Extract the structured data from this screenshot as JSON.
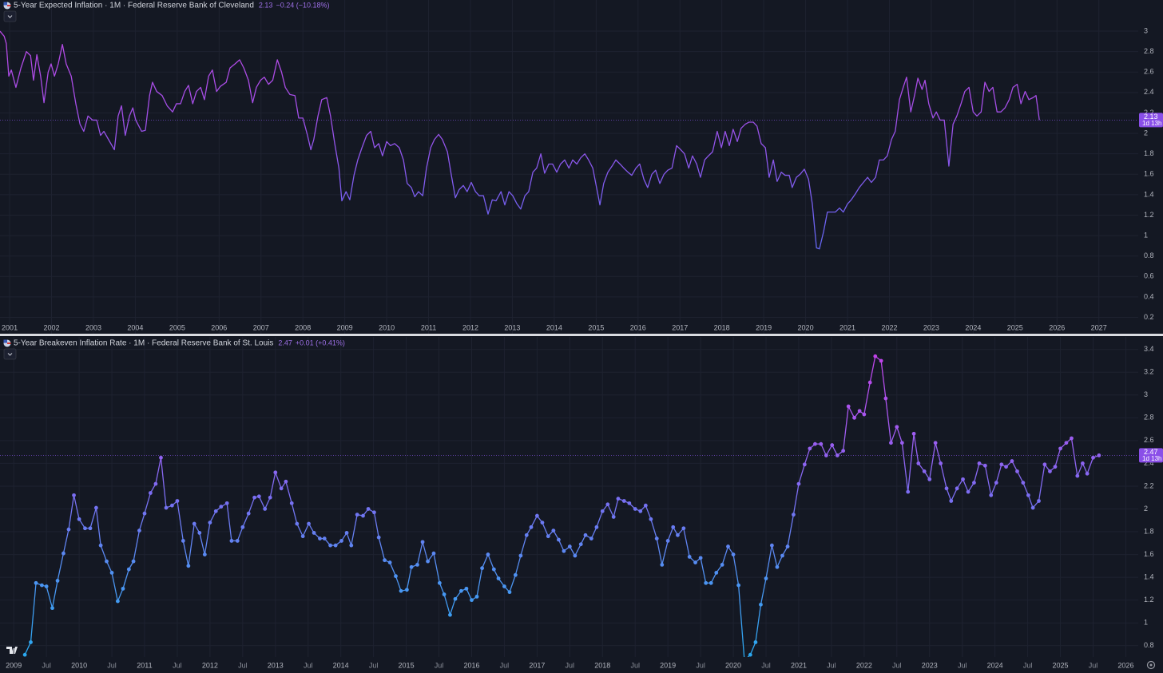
{
  "chart_data": [
    {
      "type": "line",
      "title": "5-Year Expected Inflation · 1M · Federal Reserve Bank of Cleveland",
      "last": "2.13",
      "change": "−0.24 (−10.18%)",
      "countdown": "1d 13h",
      "x": [
        2000.77,
        2000.87,
        2000.92,
        2000.98,
        2001.04,
        2001.15,
        2001.27,
        2001.4,
        2001.5,
        2001.57,
        2001.65,
        2001.74,
        2001.82,
        2001.92,
        2001.99,
        2002.07,
        2002.16,
        2002.26,
        2002.35,
        2002.47,
        2002.58,
        2002.68,
        2002.77,
        2002.87,
        2002.98,
        2003.08,
        2003.17,
        2003.25,
        2003.36,
        2003.5,
        2003.59,
        2003.67,
        2003.76,
        2003.86,
        2003.94,
        2004.01,
        2004.15,
        2004.24,
        2004.34,
        2004.41,
        2004.51,
        2004.64,
        2004.76,
        2004.89,
        2004.98,
        2005.08,
        2005.18,
        2005.27,
        2005.37,
        2005.46,
        2005.56,
        2005.65,
        2005.75,
        2005.84,
        2005.94,
        2006.03,
        2006.17,
        2006.26,
        2006.38,
        2006.49,
        2006.59,
        2006.7,
        2006.8,
        2006.89,
        2006.99,
        2007.08,
        2007.18,
        2007.28,
        2007.39,
        2007.49,
        2007.58,
        2007.69,
        2007.81,
        2007.9,
        2008.0,
        2008.11,
        2008.19,
        2008.26,
        2008.36,
        2008.45,
        2008.57,
        2008.66,
        2008.76,
        2008.86,
        2008.93,
        2009.03,
        2009.12,
        2009.22,
        2009.31,
        2009.41,
        2009.52,
        2009.62,
        2009.71,
        2009.81,
        2009.9,
        2010.0,
        2010.09,
        2010.19,
        2010.3,
        2010.4,
        2010.49,
        2010.59,
        2010.67,
        2010.76,
        2010.86,
        2010.95,
        2011.05,
        2011.14,
        2011.24,
        2011.33,
        2011.45,
        2011.54,
        2011.64,
        2011.73,
        2011.83,
        2011.92,
        2012.02,
        2012.12,
        2012.21,
        2012.31,
        2012.42,
        2012.52,
        2012.61,
        2012.73,
        2012.82,
        2012.92,
        2013.01,
        2013.11,
        2013.2,
        2013.3,
        2013.39,
        2013.49,
        2013.58,
        2013.68,
        2013.77,
        2013.87,
        2013.96,
        2014.06,
        2014.15,
        2014.25,
        2014.35,
        2014.44,
        2014.54,
        2014.63,
        2014.73,
        2014.82,
        2014.92,
        2015.01,
        2015.09,
        2015.18,
        2015.28,
        2015.38,
        2015.47,
        2015.57,
        2015.66,
        2015.76,
        2015.85,
        2015.95,
        2016.04,
        2016.14,
        2016.23,
        2016.33,
        2016.42,
        2016.52,
        2016.62,
        2016.71,
        2016.81,
        2016.92,
        2017.02,
        2017.11,
        2017.21,
        2017.3,
        2017.4,
        2017.49,
        2017.59,
        2017.68,
        2017.78,
        2017.89,
        2017.99,
        2018.08,
        2018.18,
        2018.27,
        2018.37,
        2018.46,
        2018.56,
        2018.65,
        2018.75,
        2018.84,
        2018.94,
        2019.04,
        2019.13,
        2019.23,
        2019.32,
        2019.42,
        2019.51,
        2019.61,
        2019.68,
        2019.78,
        2019.87,
        2019.97,
        2020.07,
        2020.16,
        2020.26,
        2020.33,
        2020.43,
        2020.52,
        2020.62,
        2020.71,
        2020.81,
        2020.9,
        2021.0,
        2021.09,
        2021.19,
        2021.28,
        2021.38,
        2021.48,
        2021.57,
        2021.67,
        2021.76,
        2021.86,
        2021.95,
        2022.05,
        2022.14,
        2022.24,
        2022.33,
        2022.41,
        2022.51,
        2022.6,
        2022.68,
        2022.78,
        2022.85,
        2022.94,
        2023.04,
        2023.12,
        2023.21,
        2023.31,
        2023.42,
        2023.52,
        2023.61,
        2023.71,
        2023.8,
        2023.9,
        2024.0,
        2024.09,
        2024.19,
        2024.28,
        2024.38,
        2024.47,
        2024.57,
        2024.66,
        2024.76,
        2024.86,
        2024.95,
        2025.05,
        2025.14,
        2025.24,
        2025.33,
        2025.43,
        2025.5,
        2025.58
      ],
      "values": [
        3.0,
        2.95,
        2.88,
        2.56,
        2.62,
        2.45,
        2.64,
        2.8,
        2.76,
        2.52,
        2.77,
        2.56,
        2.3,
        2.6,
        2.68,
        2.56,
        2.68,
        2.87,
        2.68,
        2.56,
        2.29,
        2.09,
        2.02,
        2.17,
        2.13,
        2.13,
        1.98,
        2.02,
        1.94,
        1.84,
        2.17,
        2.27,
        1.98,
        2.17,
        2.25,
        2.13,
        2.02,
        2.03,
        2.37,
        2.5,
        2.41,
        2.37,
        2.27,
        2.21,
        2.29,
        2.29,
        2.41,
        2.47,
        2.29,
        2.41,
        2.45,
        2.33,
        2.56,
        2.62,
        2.41,
        2.46,
        2.5,
        2.64,
        2.68,
        2.72,
        2.64,
        2.52,
        2.3,
        2.45,
        2.52,
        2.55,
        2.48,
        2.52,
        2.72,
        2.6,
        2.45,
        2.38,
        2.37,
        2.15,
        2.15,
        1.98,
        1.84,
        1.94,
        2.17,
        2.33,
        2.35,
        2.17,
        1.9,
        1.66,
        1.34,
        1.43,
        1.35,
        1.59,
        1.74,
        1.86,
        1.98,
        2.02,
        1.86,
        1.9,
        1.78,
        1.92,
        1.88,
        1.9,
        1.86,
        1.74,
        1.51,
        1.47,
        1.38,
        1.43,
        1.39,
        1.66,
        1.86,
        1.94,
        1.99,
        1.94,
        1.82,
        1.6,
        1.37,
        1.45,
        1.49,
        1.43,
        1.52,
        1.43,
        1.39,
        1.39,
        1.21,
        1.35,
        1.34,
        1.43,
        1.3,
        1.43,
        1.39,
        1.31,
        1.26,
        1.39,
        1.43,
        1.62,
        1.66,
        1.8,
        1.61,
        1.7,
        1.7,
        1.62,
        1.7,
        1.74,
        1.66,
        1.74,
        1.7,
        1.76,
        1.8,
        1.74,
        1.66,
        1.47,
        1.3,
        1.51,
        1.62,
        1.68,
        1.74,
        1.7,
        1.66,
        1.62,
        1.59,
        1.66,
        1.7,
        1.55,
        1.47,
        1.6,
        1.64,
        1.51,
        1.6,
        1.64,
        1.66,
        1.88,
        1.84,
        1.8,
        1.66,
        1.78,
        1.7,
        1.57,
        1.74,
        1.78,
        1.82,
        2.02,
        1.86,
        2.02,
        1.88,
        2.04,
        1.92,
        2.05,
        2.09,
        2.11,
        2.11,
        2.07,
        1.9,
        1.86,
        1.57,
        1.74,
        1.53,
        1.62,
        1.59,
        1.59,
        1.47,
        1.57,
        1.6,
        1.65,
        1.55,
        1.31,
        0.88,
        0.87,
        1.04,
        1.23,
        1.23,
        1.23,
        1.27,
        1.23,
        1.31,
        1.35,
        1.41,
        1.47,
        1.52,
        1.57,
        1.52,
        1.57,
        1.74,
        1.74,
        1.78,
        1.94,
        2.02,
        2.33,
        2.45,
        2.55,
        2.21,
        2.37,
        2.54,
        2.43,
        2.52,
        2.29,
        2.15,
        2.21,
        2.13,
        2.13,
        1.68,
        2.09,
        2.17,
        2.29,
        2.41,
        2.45,
        2.21,
        2.17,
        2.21,
        2.5,
        2.41,
        2.45,
        2.21,
        2.21,
        2.25,
        2.33,
        2.45,
        2.48,
        2.29,
        2.41,
        2.33,
        2.35,
        2.37,
        2.13
      ],
      "xlim": [
        2000.77,
        2027.94
      ],
      "xticks": [
        2001,
        2002,
        2003,
        2004,
        2005,
        2006,
        2007,
        2008,
        2009,
        2010,
        2011,
        2012,
        2013,
        2014,
        2015,
        2016,
        2017,
        2018,
        2019,
        2020,
        2021,
        2022,
        2023,
        2024,
        2025,
        2026,
        2027
      ],
      "ylim": [
        0.04,
        3.305
      ],
      "yticks": [
        0.2,
        0.4,
        0.6,
        0.8,
        1,
        1.2,
        1.4,
        1.6,
        1.8,
        2,
        2.2,
        2.4,
        2.6,
        2.8,
        3
      ],
      "colors": [
        "#4a74f2",
        "#6d62f0",
        "#a24ee6",
        "#c046e2"
      ],
      "markers": false,
      "grid": true
    },
    {
      "type": "line",
      "title": "5-Year Breakeven Inflation Rate · 1M · Federal Reserve Bank of St. Louis",
      "last": "2.47",
      "change": "+0.01 (+0.41%)",
      "countdown": "1d 13h",
      "x": [
        2009.17,
        2009.26,
        2009.34,
        2009.43,
        2009.5,
        2009.59,
        2009.67,
        2009.76,
        2009.84,
        2009.92,
        2010.0,
        2010.09,
        2010.17,
        2010.26,
        2010.33,
        2010.42,
        2010.5,
        2010.59,
        2010.67,
        2010.76,
        2010.83,
        2010.92,
        2011.0,
        2011.09,
        2011.17,
        2011.25,
        2011.33,
        2011.42,
        2011.5,
        2011.59,
        2011.67,
        2011.76,
        2011.84,
        2011.92,
        2012.0,
        2012.09,
        2012.17,
        2012.26,
        2012.33,
        2012.42,
        2012.5,
        2012.59,
        2012.68,
        2012.75,
        2012.84,
        2012.92,
        2013.0,
        2013.09,
        2013.16,
        2013.25,
        2013.33,
        2013.42,
        2013.51,
        2013.59,
        2013.68,
        2013.75,
        2013.84,
        2013.92,
        2014.01,
        2014.09,
        2014.16,
        2014.25,
        2014.34,
        2014.42,
        2014.51,
        2014.58,
        2014.67,
        2014.75,
        2014.84,
        2014.92,
        2015.01,
        2015.08,
        2015.17,
        2015.25,
        2015.33,
        2015.42,
        2015.51,
        2015.58,
        2015.67,
        2015.75,
        2015.84,
        2015.92,
        2016.0,
        2016.08,
        2016.16,
        2016.25,
        2016.34,
        2016.41,
        2016.5,
        2016.58,
        2016.67,
        2016.75,
        2016.84,
        2016.91,
        2017.0,
        2017.08,
        2017.17,
        2017.25,
        2017.33,
        2017.41,
        2017.5,
        2017.58,
        2017.67,
        2017.74,
        2017.83,
        2017.91,
        2018.0,
        2018.08,
        2018.17,
        2018.24,
        2018.33,
        2018.41,
        2018.5,
        2018.58,
        2018.66,
        2018.74,
        2018.83,
        2018.91,
        2019.0,
        2019.08,
        2019.15,
        2019.24,
        2019.33,
        2019.42,
        2019.5,
        2019.58,
        2019.66,
        2019.74,
        2019.83,
        2019.92,
        2020.0,
        2020.08,
        2020.17,
        2020.26,
        2020.34,
        2020.42,
        2020.5,
        2020.59,
        2020.67,
        2020.75,
        2020.83,
        2020.92,
        2021.0,
        2021.09,
        2021.17,
        2021.25,
        2021.34,
        2021.42,
        2021.51,
        2021.59,
        2021.68,
        2021.76,
        2021.85,
        2021.93,
        2022.0,
        2022.09,
        2022.17,
        2022.26,
        2022.33,
        2022.41,
        2022.5,
        2022.58,
        2022.67,
        2022.76,
        2022.83,
        2022.92,
        2023.0,
        2023.09,
        2023.17,
        2023.26,
        2023.33,
        2023.42,
        2023.51,
        2023.59,
        2023.68,
        2023.76,
        2023.85,
        2023.94,
        2024.02,
        2024.1,
        2024.17,
        2024.26,
        2024.34,
        2024.43,
        2024.51,
        2024.58,
        2024.67,
        2024.76,
        2024.84,
        2024.92,
        2025.0,
        2025.09,
        2025.17,
        2025.26,
        2025.34,
        2025.41,
        2025.5,
        2025.59
      ],
      "values": [
        0.72,
        0.83,
        1.35,
        1.33,
        1.32,
        1.13,
        1.37,
        1.61,
        1.82,
        2.12,
        1.91,
        1.83,
        1.83,
        2.01,
        1.68,
        1.54,
        1.44,
        1.19,
        1.3,
        1.47,
        1.54,
        1.81,
        1.96,
        2.14,
        2.22,
        2.45,
        2.01,
        2.03,
        2.07,
        1.72,
        1.5,
        1.87,
        1.79,
        1.6,
        1.88,
        1.98,
        2.02,
        2.05,
        1.72,
        1.72,
        1.84,
        1.96,
        2.1,
        2.11,
        2.0,
        2.1,
        2.32,
        2.18,
        2.24,
        2.05,
        1.87,
        1.76,
        1.87,
        1.79,
        1.74,
        1.74,
        1.68,
        1.68,
        1.72,
        1.79,
        1.68,
        1.95,
        1.94,
        2.0,
        1.97,
        1.75,
        1.55,
        1.53,
        1.41,
        1.28,
        1.29,
        1.49,
        1.51,
        1.71,
        1.54,
        1.61,
        1.35,
        1.25,
        1.07,
        1.21,
        1.28,
        1.3,
        1.2,
        1.23,
        1.48,
        1.6,
        1.47,
        1.39,
        1.32,
        1.27,
        1.42,
        1.59,
        1.77,
        1.84,
        1.94,
        1.88,
        1.76,
        1.81,
        1.73,
        1.63,
        1.67,
        1.59,
        1.69,
        1.77,
        1.74,
        1.84,
        1.98,
        2.04,
        1.93,
        2.09,
        2.07,
        2.05,
        2.0,
        1.98,
        2.03,
        1.91,
        1.74,
        1.51,
        1.72,
        1.84,
        1.77,
        1.83,
        1.58,
        1.53,
        1.57,
        1.35,
        1.35,
        1.44,
        1.51,
        1.67,
        1.6,
        1.33,
        0.67,
        0.72,
        0.83,
        1.16,
        1.39,
        1.68,
        1.49,
        1.59,
        1.67,
        1.95,
        2.22,
        2.39,
        2.53,
        2.57,
        2.57,
        2.47,
        2.56,
        2.47,
        2.51,
        2.9,
        2.8,
        2.86,
        2.83,
        3.11,
        3.34,
        3.3,
        2.97,
        2.58,
        2.72,
        2.58,
        2.15,
        2.66,
        2.4,
        2.33,
        2.26,
        2.58,
        2.4,
        2.18,
        2.07,
        2.18,
        2.26,
        2.15,
        2.23,
        2.4,
        2.38,
        2.12,
        2.23,
        2.39,
        2.37,
        2.42,
        2.33,
        2.23,
        2.12,
        2.01,
        2.07,
        2.39,
        2.33,
        2.37,
        2.53,
        2.58,
        2.62,
        2.29,
        2.4,
        2.31,
        2.45,
        2.47
      ],
      "xlim": [
        2008.79,
        2026.19
      ],
      "xticks": [
        2009,
        {
          "value": 2009.5,
          "label": "Jul"
        },
        2010,
        {
          "value": 2010.5,
          "label": "Jul"
        },
        2011,
        {
          "value": 2011.5,
          "label": "Jul"
        },
        2012,
        {
          "value": 2012.5,
          "label": "Jul"
        },
        2013,
        {
          "value": 2013.5,
          "label": "Jul"
        },
        2014,
        {
          "value": 2014.5,
          "label": "Jul"
        },
        2015,
        {
          "value": 2015.5,
          "label": "Jul"
        },
        2016,
        {
          "value": 2016.5,
          "label": "Jul"
        },
        2017,
        {
          "value": 2017.5,
          "label": "Jul"
        },
        2018,
        {
          "value": 2018.5,
          "label": "Jul"
        },
        2019,
        {
          "value": 2019.5,
          "label": "Jul"
        },
        2020,
        {
          "value": 2020.5,
          "label": "Jul"
        },
        2021,
        {
          "value": 2021.5,
          "label": "Jul"
        },
        2022,
        {
          "value": 2022.5,
          "label": "Jul"
        },
        2023,
        {
          "value": 2023.5,
          "label": "Jul"
        },
        2024,
        {
          "value": 2024.5,
          "label": "Jul"
        },
        2025,
        {
          "value": 2025.5,
          "label": "Jul"
        },
        2026
      ],
      "ylim": [
        0.7,
        3.51
      ],
      "yticks": [
        0.8,
        1,
        1.2,
        1.4,
        1.6,
        1.8,
        2,
        2.2,
        2.4,
        2.6,
        2.8,
        3,
        3.2,
        3.4
      ],
      "colors": [
        "#2aa9f0",
        "#4e93f2",
        "#7a6ef2",
        "#a857ef",
        "#c63de6"
      ],
      "markers": true,
      "grid": true
    }
  ]
}
